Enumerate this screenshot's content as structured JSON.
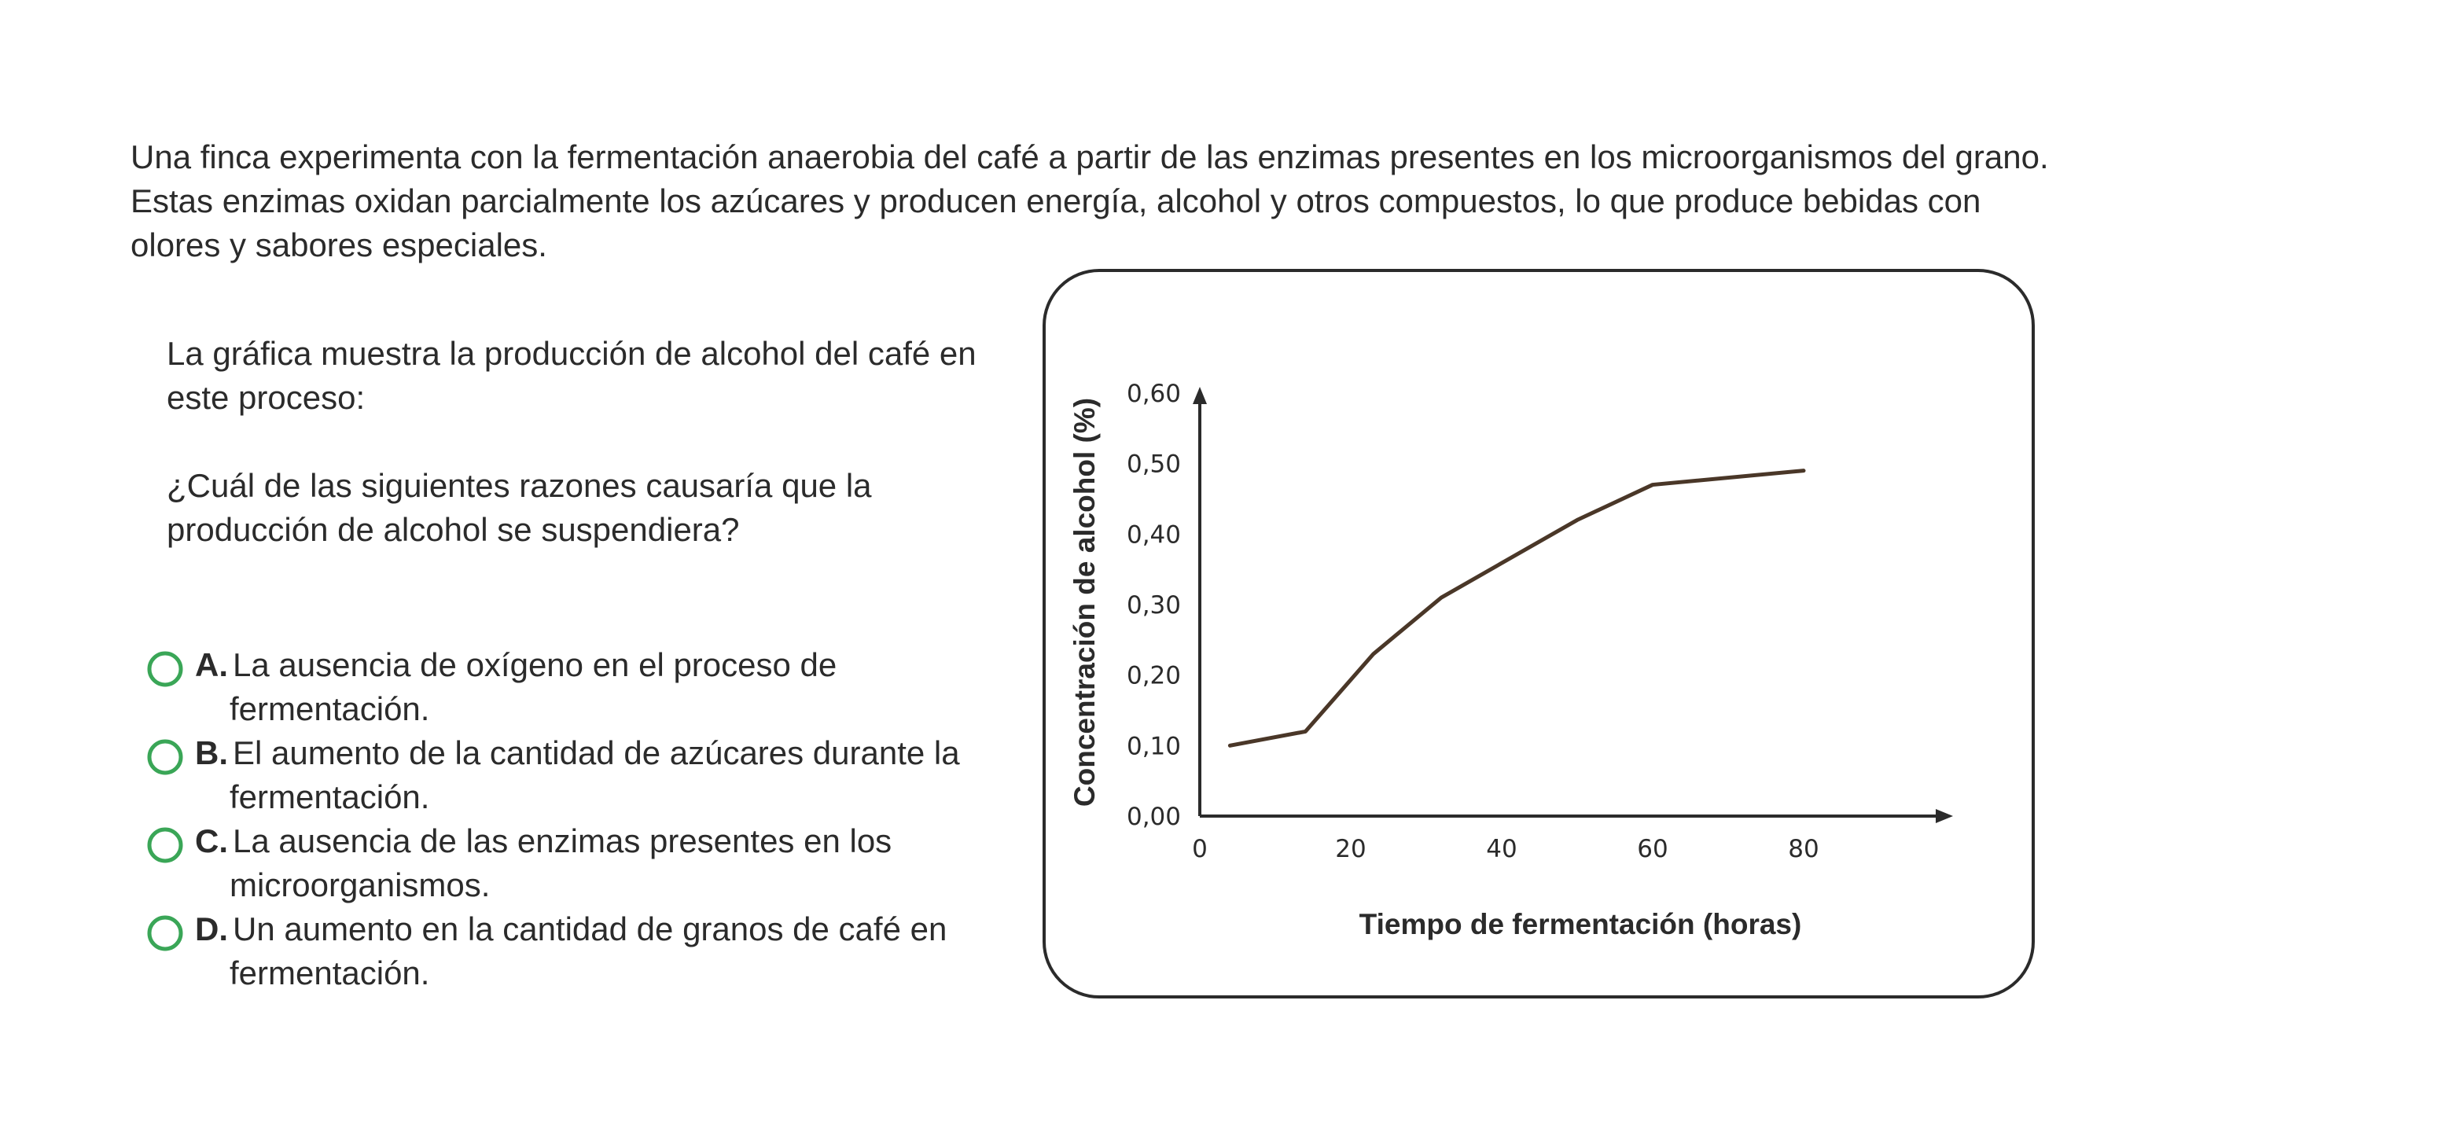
{
  "intro": "Una finca experimenta con la fermentación anaerobia del café a partir de las enzimas presentes en los microorganismos del grano. Estas enzimas oxidan parcialmente los azúcares y producen energía, alcohol y otros compuestos, lo que produce bebidas con olores y sabores especiales.",
  "prompt": {
    "lead": "La gráfica muestra la producción de alcohol del café en este proceso:",
    "question": "¿Cuál de las siguientes razones causaría que la producción de alcohol se suspendiera?"
  },
  "options": [
    {
      "letter": "A.",
      "line1": "La ausencia de oxígeno en el proceso de",
      "line2": "fermentación."
    },
    {
      "letter": "B.",
      "line1": "El aumento de la cantidad de azúcares durante la",
      "line2": "fermentación."
    },
    {
      "letter": "C.",
      "line1": "La ausencia de las enzimas presentes en los",
      "line2": "microorganismos."
    },
    {
      "letter": "D.",
      "line1": "Un aumento en la cantidad de granos de café en",
      "line2": "fermentación."
    }
  ],
  "colors": {
    "line": "#4a3728",
    "radio": "#3aa657",
    "text": "#2b2b2b"
  },
  "chart_data": {
    "type": "line",
    "title": "",
    "xlabel": "Tiempo de fermentación (horas)",
    "ylabel": "Concentración de alcohol (%)",
    "xlim": [
      0,
      80
    ],
    "ylim": [
      0,
      0.6
    ],
    "xticks": [
      "0",
      "20",
      "40",
      "60",
      "80"
    ],
    "yticks": [
      "0,00",
      "0,10",
      "0,20",
      "0,30",
      "0,40",
      "0,50",
      "0,60"
    ],
    "x": [
      4,
      14,
      23,
      32,
      50,
      60,
      80
    ],
    "series": [
      {
        "values": [
          0.1,
          0.12,
          0.23,
          0.31,
          0.42,
          0.47,
          0.49
        ]
      }
    ],
    "grid": false
  }
}
